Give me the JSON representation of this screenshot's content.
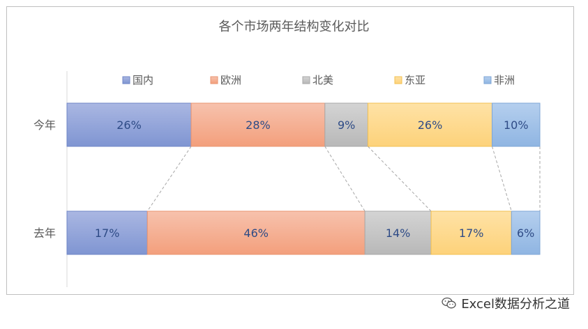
{
  "chart_data": {
    "type": "bar",
    "orientation": "horizontal",
    "stacked": "percent",
    "title": "各个市场两年结构变化对比",
    "categories": [
      "今年",
      "去年"
    ],
    "series": [
      {
        "name": "国内",
        "values": [
          26,
          17
        ],
        "labels": [
          "26%",
          "17%"
        ],
        "color": "#8fa2d8"
      },
      {
        "name": "欧洲",
        "values": [
          28,
          46
        ],
        "labels": [
          "28%",
          "46%"
        ],
        "color": "#f4a98a"
      },
      {
        "name": "北美",
        "values": [
          9,
          14
        ],
        "labels": [
          "9%",
          "14%"
        ],
        "color": "#c3c3c3"
      },
      {
        "name": "东亚",
        "values": [
          26,
          17
        ],
        "labels": [
          "26%",
          "17%"
        ],
        "color": "#fed88a"
      },
      {
        "name": "非洲",
        "values": [
          10,
          6
        ],
        "labels": [
          "10%",
          "6%"
        ],
        "color": "#9fc0e6"
      }
    ],
    "legend_position": "top",
    "connector_lines": true,
    "grid": false
  },
  "watermark": {
    "text": "Excel数据分析之道",
    "icon": "wechat-icon"
  }
}
